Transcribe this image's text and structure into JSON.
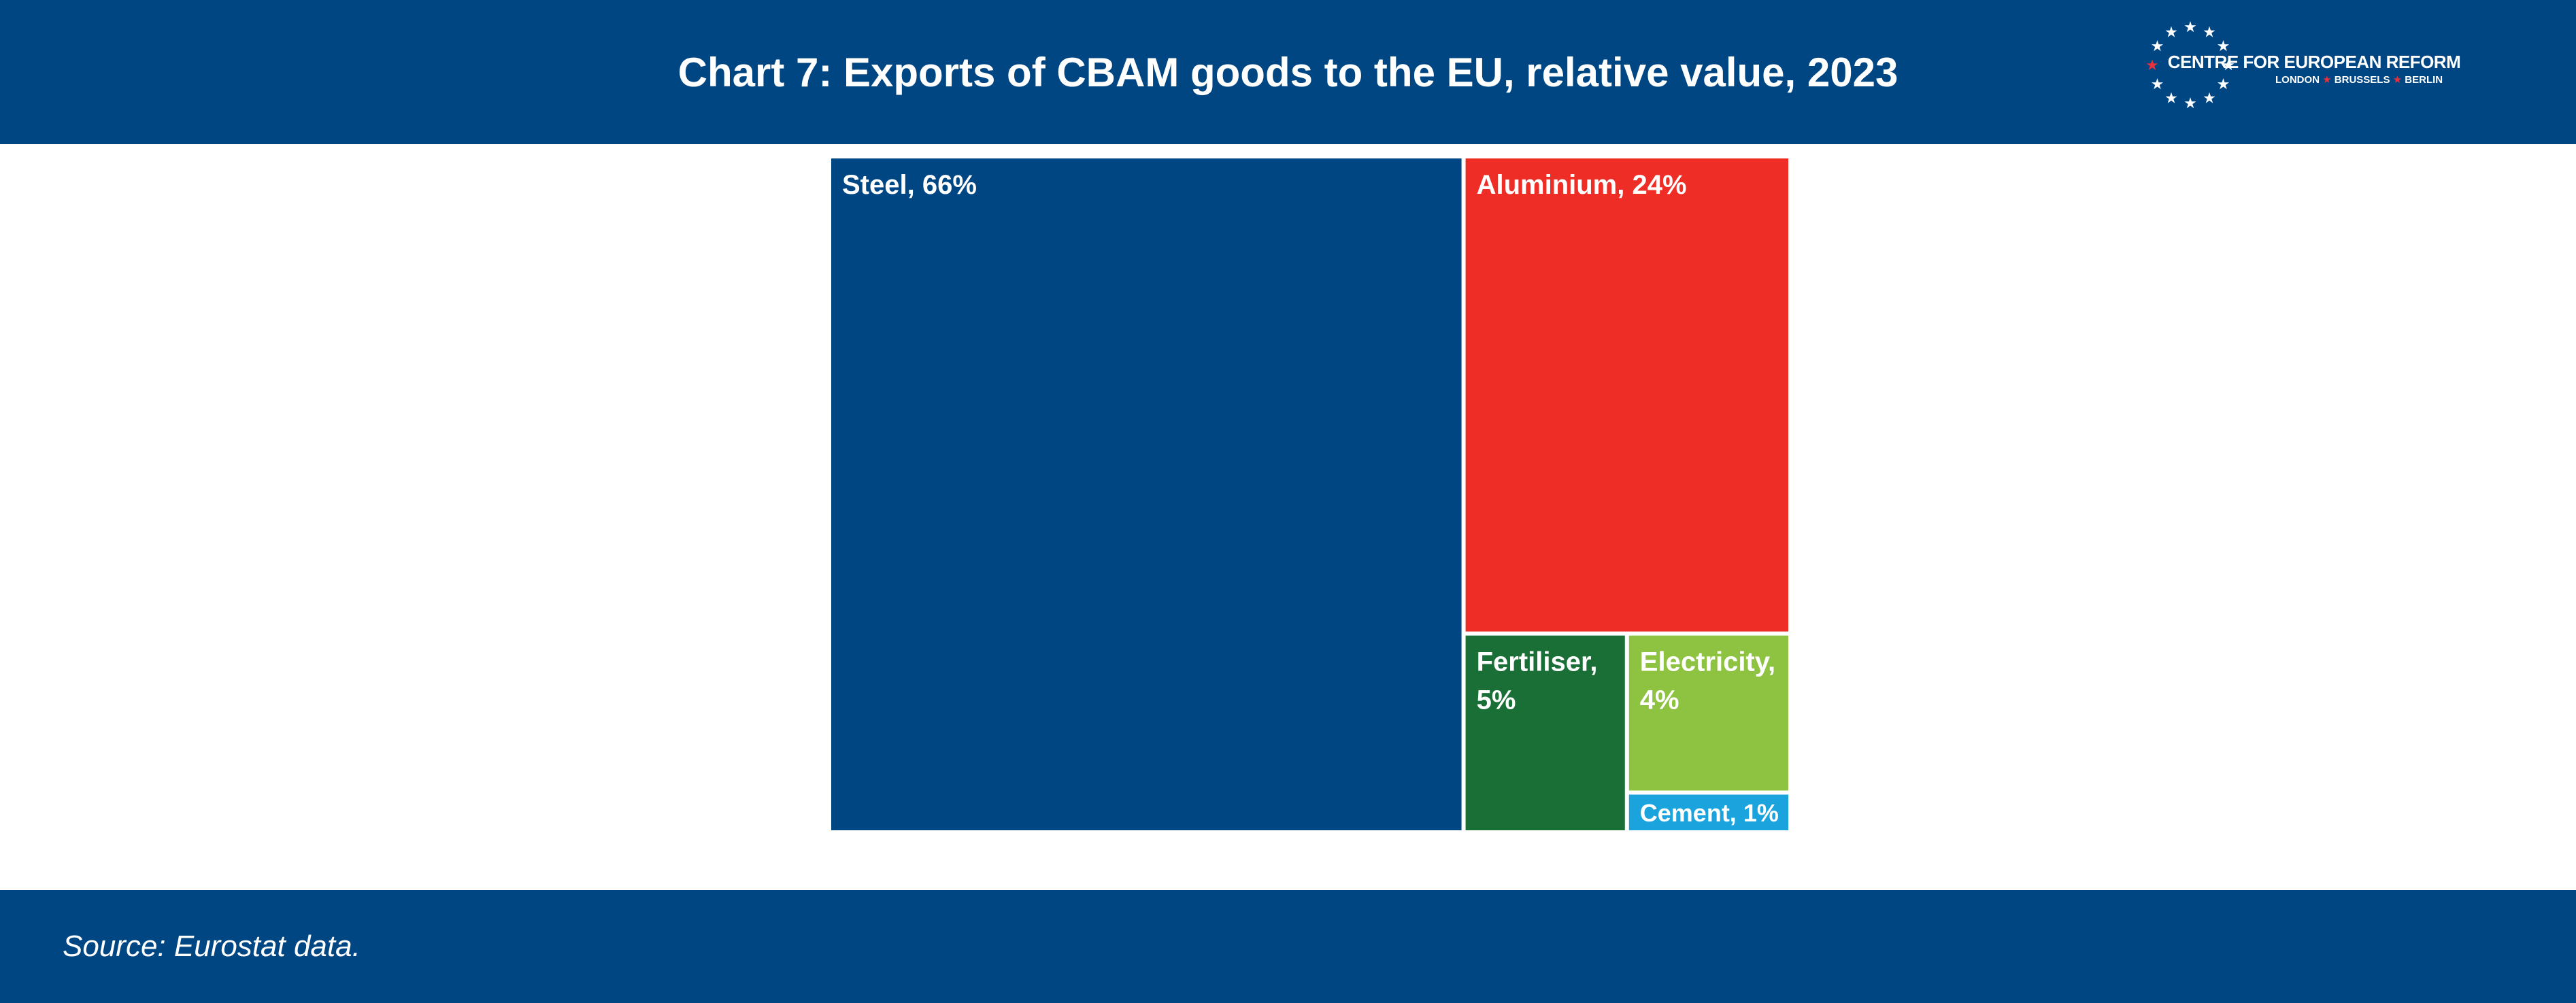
{
  "header": {
    "title": "Chart 7: Exports of CBAM goods to the EU, relative value, 2023",
    "logo": {
      "name": "CENTRE FOR EUROPEAN REFORM",
      "cities": [
        "LONDON",
        "BRUSSELS",
        "BERLIN"
      ]
    }
  },
  "chart_data": {
    "type": "treemap",
    "title": "Chart 7: Exports of CBAM goods to the EU, relative value, 2023",
    "unit": "%",
    "items": [
      {
        "name": "Steel",
        "value": 66,
        "label": "Steel, 66%",
        "color": "#004683"
      },
      {
        "name": "Aluminium",
        "value": 24,
        "label": "Aluminium, 24%",
        "color": "#ee2e26"
      },
      {
        "name": "Fertiliser",
        "value": 5,
        "label": "Fertiliser, 5%",
        "color": "#1a6f37"
      },
      {
        "name": "Electricity",
        "value": 4,
        "label": "Electricity, 4%",
        "color": "#8dc340"
      },
      {
        "name": "Cement",
        "value": 1,
        "label": "Cement, 1%",
        "color": "#1aa3dc"
      }
    ]
  },
  "footer": {
    "source": "Source: Eurostat data."
  },
  "colors": {
    "brand_blue": "#004683",
    "logo_red": "#e8323c"
  }
}
